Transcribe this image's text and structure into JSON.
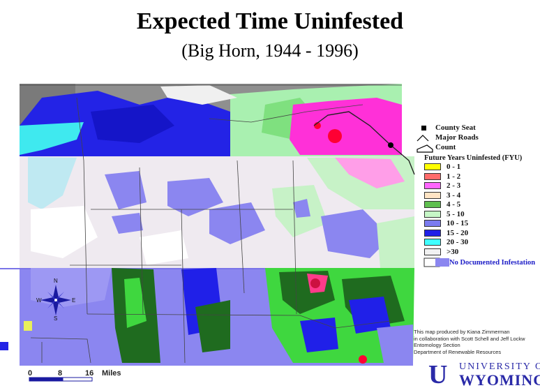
{
  "title": "Expected Time Uninfested",
  "subtitle": "(Big Horn, 1944 - 1996)",
  "legend": {
    "county_seat": "County Seat",
    "major_roads": "Major Roads",
    "county_line": "Count",
    "fyu_title": "Future Years Uninfested (FYU)",
    "items": [
      {
        "label": "0 - 1",
        "color": "#ffff00"
      },
      {
        "label": "1 - 2",
        "color": "#ff6b6b"
      },
      {
        "label": "2 - 3",
        "color": "#ff66ff"
      },
      {
        "label": "3 - 4",
        "color": "#ffe4c4"
      },
      {
        "label": "4 - 5",
        "color": "#5fbf4f"
      },
      {
        "label": "5 - 10",
        "color": "#c6f7c6"
      },
      {
        "label": "10 - 15",
        "color": "#7b7bf0"
      },
      {
        "label": "15 - 20",
        "color": "#2020e8"
      },
      {
        "label": "20 - 30",
        "color": "#40ffff"
      },
      {
        "label": ">30",
        "color": "#f2f2f2"
      }
    ],
    "no_doc": "No Documented Infestation"
  },
  "credits": [
    "This map produced by Kiana Zimmerman",
    "in collaboration with Scott Schell and Jeff Lockw",
    "Entomology Section",
    "Department of Renewable Resources"
  ],
  "compass": {
    "n": "N",
    "s": "S",
    "e": "E",
    "w": "W"
  },
  "scale": {
    "t0": "0",
    "t1": "8",
    "t2": "16",
    "unit": "Miles"
  },
  "logo": {
    "line1": "UNIVERSITY OF",
    "line2": "WYOMING"
  },
  "colors": {
    "gray": "#8c8c8c",
    "darkgray": "#6f6f6f",
    "blue": "#2020e8",
    "cyan": "#40ffff",
    "lightgreen": "#a8f0a8",
    "magenta": "#ff33dd",
    "red": "#ff0033",
    "lavender": "#8b86f0",
    "darkgreen": "#1f6b1f",
    "green": "#3fd73f",
    "lightblue": "#c9c9ff",
    "palepink": "#f3eff3"
  }
}
